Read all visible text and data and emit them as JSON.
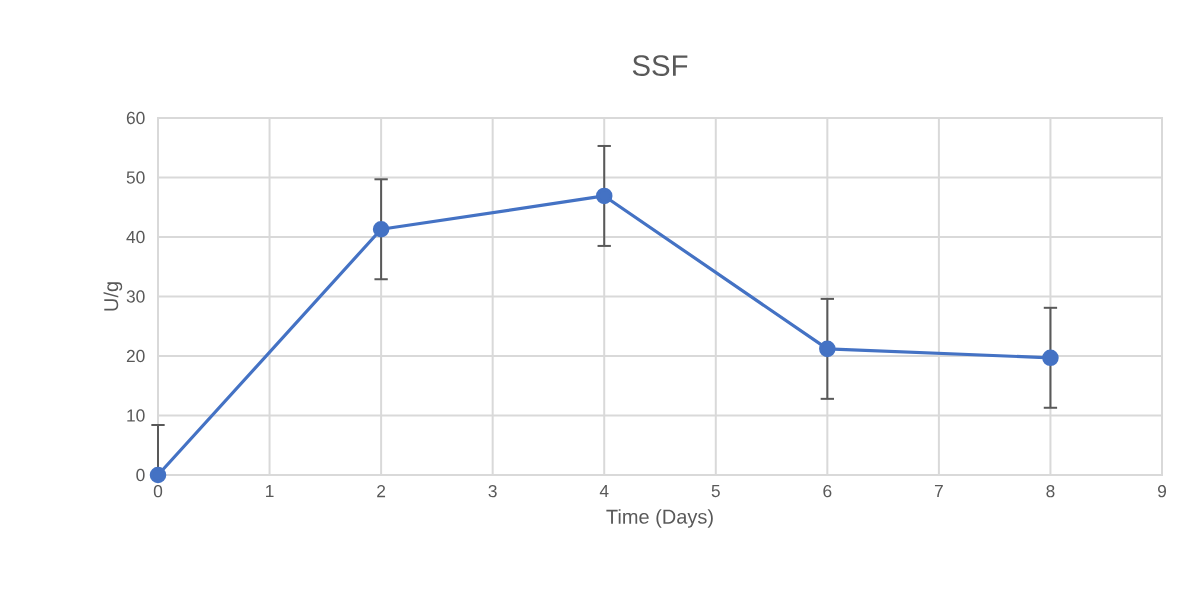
{
  "chart_data": {
    "type": "line",
    "title": "SSF",
    "xlabel": "Time (Days)",
    "ylabel": "U/g",
    "series": [
      {
        "color": "#4472c4",
        "x": [
          0,
          2,
          4,
          6,
          8
        ],
        "values": [
          0,
          41.3,
          46.9,
          21.2,
          19.7
        ],
        "errors": [
          [
            0,
            8.4
          ],
          8.4,
          8.4,
          8.4,
          8.4
        ]
      }
    ],
    "xlim": [
      0,
      9
    ],
    "xticks": [
      0,
      1,
      2,
      3,
      4,
      5,
      6,
      7,
      8,
      9
    ],
    "ylim": [
      0,
      60
    ],
    "yticks": [
      0,
      10,
      20,
      30,
      40,
      50,
      60
    ],
    "grid": true,
    "marker": "circle",
    "line_style": "solid"
  }
}
